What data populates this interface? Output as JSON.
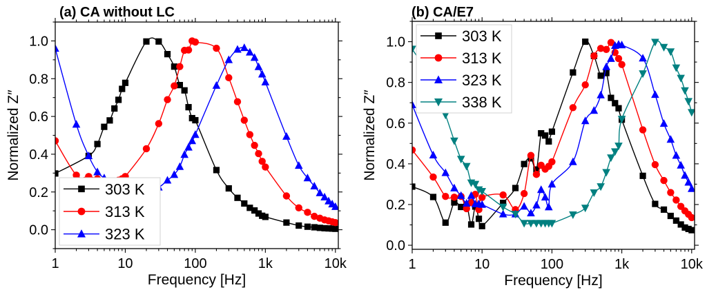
{
  "chart_data": [
    {
      "type": "line",
      "title": "(a) CA without LC",
      "xlabel": "Frequency [Hz]",
      "ylabel": "Normalized Z″",
      "xscale": "log",
      "xlim": [
        1,
        11000
      ],
      "ylim": [
        -0.1,
        1.1
      ],
      "xticks": [
        1,
        10,
        100,
        1000,
        10000
      ],
      "xtick_labels": [
        "1",
        "10",
        "100",
        "1k",
        "10k"
      ],
      "yticks": [
        0.0,
        0.2,
        0.4,
        0.6,
        0.8,
        1.0
      ],
      "ytick_labels": [
        "0.0",
        "0.2",
        "0.4",
        "0.6",
        "0.8",
        "1.0"
      ],
      "grid": false,
      "legend_position": "bottom-left",
      "series": [
        {
          "name": "303 K",
          "color": "#000000",
          "marker": "square",
          "x": [
            1,
            3,
            4,
            5,
            6,
            7,
            8,
            9,
            10,
            20,
            30,
            40,
            50,
            60,
            70,
            80,
            90,
            100,
            200,
            300,
            400,
            500,
            600,
            700,
            800,
            900,
            1000,
            2000,
            3000,
            4000,
            5000,
            6000,
            7000,
            8000,
            9000,
            10000
          ],
          "y": [
            0.298,
            0.391,
            0.454,
            0.545,
            0.579,
            0.642,
            0.688,
            0.746,
            0.778,
            0.997,
            0.997,
            0.93,
            0.864,
            0.766,
            0.738,
            0.649,
            0.591,
            0.58,
            0.316,
            0.219,
            0.169,
            0.139,
            0.116,
            0.102,
            0.086,
            0.074,
            0.068,
            0.038,
            0.022,
            0.016,
            0.013,
            0.01,
            0.008,
            0.007,
            0.006,
            0.005
          ]
        },
        {
          "name": "313 K",
          "color": "#ff0000",
          "marker": "circle",
          "x": [
            1,
            2,
            3,
            4,
            5,
            6,
            7,
            8,
            9,
            10,
            20,
            30,
            40,
            50,
            60,
            70,
            80,
            90,
            100,
            200,
            300,
            400,
            500,
            600,
            700,
            800,
            900,
            1000,
            2000,
            3000,
            4000,
            5000,
            6000,
            7000,
            8000,
            9000,
            10000
          ],
          "y": [
            0.471,
            0.289,
            0.282,
            0.27,
            0.262,
            0.258,
            0.258,
            0.262,
            0.27,
            0.282,
            0.429,
            0.562,
            0.689,
            0.762,
            0.864,
            0.95,
            0.952,
            1.0,
            0.994,
            0.961,
            0.805,
            0.678,
            0.58,
            0.504,
            0.447,
            0.403,
            0.362,
            0.332,
            0.179,
            0.116,
            0.092,
            0.071,
            0.061,
            0.052,
            0.047,
            0.042,
            0.038
          ]
        },
        {
          "name": "323 K",
          "color": "#0000ff",
          "marker": "triangle-up",
          "x": [
            1,
            2,
            3,
            4,
            5,
            6,
            7,
            8,
            9,
            10,
            20,
            30,
            40,
            50,
            60,
            70,
            80,
            90,
            100,
            200,
            300,
            400,
            500,
            600,
            700,
            800,
            900,
            1000,
            2000,
            3000,
            4000,
            5000,
            6000,
            7000,
            8000,
            9000,
            10000
          ],
          "y": [
            0.96,
            0.558,
            0.391,
            0.306,
            0.274,
            0.255,
            0.24,
            0.232,
            0.226,
            0.222,
            0.21,
            0.225,
            0.262,
            0.292,
            0.334,
            0.398,
            0.437,
            0.471,
            0.504,
            0.764,
            0.9,
            0.955,
            0.964,
            0.94,
            0.912,
            0.863,
            0.824,
            0.782,
            0.494,
            0.34,
            0.274,
            0.231,
            0.195,
            0.173,
            0.152,
            0.136,
            0.122
          ]
        }
      ]
    },
    {
      "type": "line",
      "title": "(b) CA/E7",
      "xlabel": "Frequency [Hz]",
      "ylabel": "Normalized Z″",
      "xscale": "log",
      "xlim": [
        1,
        11000
      ],
      "ylim": [
        -0.02,
        1.1
      ],
      "xticks": [
        1,
        10,
        100,
        1000,
        10000
      ],
      "xtick_labels": [
        "1",
        "10",
        "100",
        "1k",
        "10k"
      ],
      "yticks": [
        0.0,
        0.2,
        0.4,
        0.6,
        0.8,
        1.0
      ],
      "ytick_labels": [
        "0.0",
        "0.2",
        "0.4",
        "0.6",
        "0.8",
        "1.0"
      ],
      "grid": false,
      "legend_position": "top-left",
      "series": [
        {
          "name": "303 K",
          "color": "#000000",
          "marker": "square",
          "x": [
            1,
            2,
            3,
            4,
            5,
            6,
            7,
            8,
            9,
            10,
            20,
            30,
            40,
            50,
            60,
            70,
            80,
            90,
            100,
            200,
            300,
            400,
            500,
            600,
            700,
            800,
            900,
            1000,
            2000,
            3000,
            4000,
            5000,
            6000,
            7000,
            8000,
            9000,
            10000
          ],
          "y": [
            0.288,
            0.237,
            0.111,
            0.21,
            0.188,
            0.2,
            0.102,
            0.19,
            0.13,
            0.094,
            0.208,
            0.281,
            0.399,
            0.427,
            0.372,
            0.55,
            0.539,
            0.51,
            0.558,
            0.849,
            1.0,
            0.93,
            0.833,
            0.846,
            0.724,
            0.698,
            0.673,
            0.617,
            0.341,
            0.203,
            0.175,
            0.144,
            0.121,
            0.102,
            0.087,
            0.08,
            0.074
          ]
        },
        {
          "name": "313 K",
          "color": "#ff0000",
          "marker": "circle",
          "x": [
            1,
            2,
            3,
            4,
            5,
            6,
            7,
            8,
            9,
            10,
            20,
            30,
            40,
            50,
            60,
            70,
            80,
            90,
            100,
            200,
            300,
            400,
            500,
            600,
            700,
            800,
            900,
            1000,
            2000,
            3000,
            4000,
            5000,
            6000,
            7000,
            8000,
            9000,
            10000
          ],
          "y": [
            0.468,
            0.335,
            0.24,
            0.236,
            0.24,
            0.18,
            0.21,
            0.25,
            0.175,
            0.235,
            0.247,
            0.175,
            0.254,
            0.441,
            0.348,
            0.393,
            0.374,
            0.388,
            0.41,
            0.676,
            0.788,
            0.93,
            0.967,
            0.962,
            0.996,
            0.947,
            0.917,
            0.888,
            0.567,
            0.396,
            0.318,
            0.259,
            0.222,
            0.191,
            0.169,
            0.152,
            0.136
          ]
        },
        {
          "name": "323 K",
          "color": "#0000ff",
          "marker": "triangle-up",
          "x": [
            1,
            2,
            3,
            4,
            5,
            6,
            7,
            8,
            9,
            10,
            20,
            30,
            40,
            50,
            60,
            70,
            80,
            90,
            100,
            200,
            300,
            400,
            500,
            600,
            700,
            800,
            900,
            1000,
            2000,
            3000,
            4000,
            5000,
            6000,
            7000,
            8000,
            9000,
            10000
          ],
          "y": [
            0.69,
            0.443,
            0.356,
            0.281,
            0.244,
            0.206,
            0.244,
            0.203,
            0.203,
            0.2,
            0.153,
            0.153,
            0.191,
            0.158,
            0.197,
            0.273,
            0.236,
            0.188,
            0.3,
            0.41,
            0.611,
            0.662,
            0.738,
            0.877,
            0.917,
            0.981,
            0.987,
            0.984,
            0.919,
            0.74,
            0.598,
            0.52,
            0.441,
            0.393,
            0.343,
            0.309,
            0.278
          ]
        },
        {
          "name": "338 K",
          "color": "#008080",
          "marker": "triangle-down",
          "x": [
            1,
            2,
            3,
            4,
            5,
            6,
            7,
            8,
            9,
            10,
            20,
            30,
            40,
            50,
            60,
            70,
            80,
            90,
            100,
            200,
            300,
            400,
            500,
            600,
            700,
            800,
            900,
            1000,
            2000,
            3000,
            4000,
            5000,
            6000,
            7000,
            8000,
            9000,
            10000
          ],
          "y": [
            0.964,
            0.8,
            0.64,
            0.513,
            0.423,
            0.388,
            0.307,
            0.3,
            0.273,
            0.265,
            0.188,
            0.153,
            0.108,
            0.108,
            0.108,
            0.108,
            0.108,
            0.108,
            0.108,
            0.15,
            0.183,
            0.258,
            0.288,
            0.358,
            0.43,
            0.46,
            0.488,
            0.62,
            0.843,
            0.998,
            0.973,
            0.951,
            0.872,
            0.821,
            0.76,
            0.707,
            0.653
          ]
        }
      ]
    }
  ]
}
